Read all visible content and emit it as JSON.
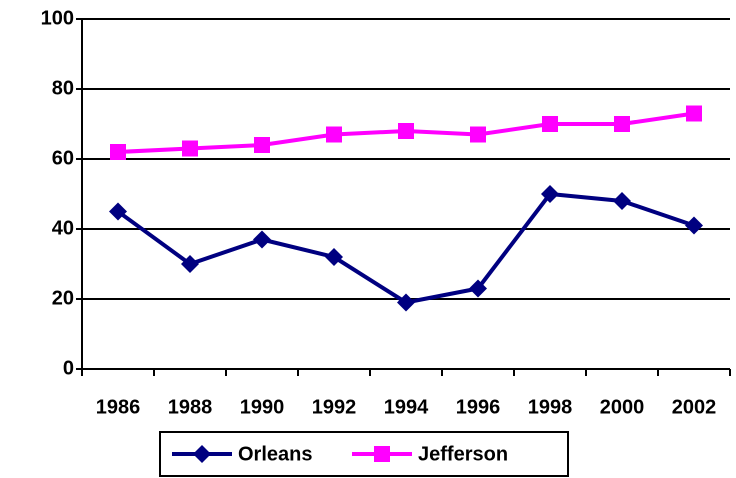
{
  "chart_data": {
    "type": "line",
    "categories": [
      "1986",
      "1988",
      "1990",
      "1992",
      "1994",
      "1996",
      "1998",
      "2000",
      "2002"
    ],
    "series": [
      {
        "name": "Orleans",
        "color": "#000080",
        "marker": "diamond",
        "values": [
          45,
          30,
          37,
          32,
          19,
          23,
          50,
          48,
          41
        ]
      },
      {
        "name": "Jefferson",
        "color": "#ff00ff",
        "marker": "square",
        "values": [
          62,
          63,
          64,
          67,
          68,
          67,
          70,
          70,
          73
        ]
      }
    ],
    "ylim": [
      0,
      100
    ],
    "yticks": [
      0,
      20,
      40,
      60,
      80,
      100
    ],
    "grid": true,
    "legend": "bottom"
  }
}
